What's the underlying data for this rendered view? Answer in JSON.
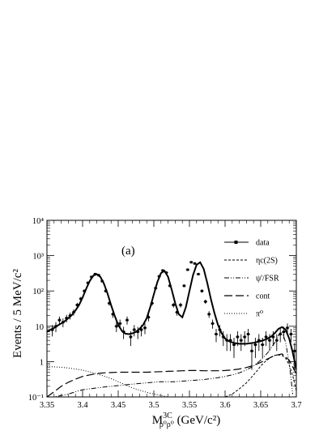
{
  "chart_data": {
    "type": "line",
    "panel_label": "(a)",
    "xlabel": {
      "main": "M",
      "sup": "3C",
      "sub": "ρ⁰ρ⁰",
      "unit": " (GeV/c²)"
    },
    "ylabel": "Events / 5 MeV/c²",
    "xlim": [
      3.35,
      3.7
    ],
    "ylim": [
      0.1,
      10000
    ],
    "yscale": "log",
    "x_ticks": [
      "3.35",
      "3.4",
      "3.45",
      "3.5",
      "3.55",
      "3.6",
      "3.65",
      "3.7"
    ],
    "y_ticks": [
      "10⁻¹",
      "1",
      "10",
      "10²",
      "10³",
      "10⁴"
    ],
    "legend_position": "top-right",
    "legend": [
      {
        "label": "data",
        "style": "data"
      },
      {
        "label": "ηc(2S)",
        "style": "dashed"
      },
      {
        "label": "ψ'/FSR",
        "style": "dashdot"
      },
      {
        "label": "cont",
        "style": "longdash"
      },
      {
        "label": "π⁰",
        "style": "dotted"
      }
    ],
    "data_points": {
      "name": "data",
      "x": [
        3.3575,
        3.3625,
        3.3675,
        3.3725,
        3.3775,
        3.3825,
        3.3875,
        3.3925,
        3.3975,
        3.4025,
        3.4075,
        3.4125,
        3.4175,
        3.4225,
        3.4275,
        3.4325,
        3.4375,
        3.4425,
        3.4475,
        3.4525,
        3.4575,
        3.4625,
        3.4675,
        3.4725,
        3.4775,
        3.4825,
        3.4875,
        3.4925,
        3.4975,
        3.5025,
        3.5075,
        3.5125,
        3.5175,
        3.5225,
        3.5275,
        3.5325,
        3.5375,
        3.5425,
        3.5475,
        3.5525,
        3.5575,
        3.5625,
        3.5675,
        3.5725,
        3.5775,
        3.5825,
        3.5875,
        3.5925,
        3.5975,
        3.6025,
        3.6075,
        3.6125,
        3.6175,
        3.6225,
        3.6275,
        3.6325,
        3.6375,
        3.6425,
        3.6475,
        3.6525,
        3.6575,
        3.6625,
        3.6675,
        3.6725,
        3.6775,
        3.6825,
        3.6875,
        3.6925,
        3.6975
      ],
      "y": [
        8,
        10,
        15,
        13,
        17,
        20,
        25,
        40,
        60,
        100,
        170,
        250,
        300,
        280,
        190,
        100,
        45,
        22,
        10,
        12,
        7,
        15,
        5,
        8,
        7,
        8,
        9,
        18,
        45,
        120,
        260,
        380,
        330,
        140,
        40,
        25,
        40,
        140,
        400,
        650,
        600,
        300,
        100,
        50,
        22,
        12,
        6,
        8,
        5,
        4,
        4,
        3,
        5,
        4,
        5,
        6,
        2,
        3,
        4,
        3,
        5,
        4,
        5,
        4,
        6,
        7,
        9,
        6,
        2
      ]
    },
    "curves": {
      "fit_x": [
        3.35,
        3.355,
        3.36,
        3.365,
        3.37,
        3.375,
        3.38,
        3.385,
        3.39,
        3.395,
        3.4,
        3.405,
        3.41,
        3.415,
        3.42,
        3.425,
        3.43,
        3.435,
        3.44,
        3.445,
        3.45,
        3.455,
        3.46,
        3.465,
        3.47,
        3.475,
        3.48,
        3.485,
        3.49,
        3.495,
        3.5,
        3.505,
        3.51,
        3.515,
        3.52,
        3.525,
        3.53,
        3.535,
        3.54,
        3.545,
        3.55,
        3.555,
        3.56,
        3.565,
        3.57,
        3.575,
        3.58,
        3.585,
        3.59,
        3.595,
        3.6,
        3.605,
        3.61,
        3.615,
        3.62,
        3.625,
        3.63,
        3.635,
        3.64,
        3.645,
        3.65,
        3.655,
        3.66,
        3.665,
        3.67,
        3.675,
        3.68,
        3.685,
        3.69,
        3.695,
        3.7
      ],
      "fit_y": [
        7,
        8,
        9,
        10.5,
        12,
        14,
        17,
        21,
        28,
        40,
        65,
        115,
        190,
        270,
        300,
        250,
        160,
        85,
        40,
        20,
        11,
        7.5,
        6.2,
        6,
        6.3,
        7,
        8.5,
        11,
        17,
        35,
        80,
        180,
        320,
        370,
        250,
        110,
        45,
        22,
        18,
        35,
        100,
        280,
        550,
        650,
        420,
        170,
        60,
        24,
        11,
        6.5,
        4.5,
        3.8,
        3.5,
        3.3,
        3.2,
        3.2,
        3.2,
        3.3,
        3.4,
        3.6,
        3.8,
        4.1,
        4.5,
        5.2,
        6.5,
        8.5,
        9.5,
        8,
        4.5,
        1.8,
        0.6
      ],
      "pi0_x": [
        3.35,
        3.36,
        3.37,
        3.38,
        3.39,
        3.4,
        3.41,
        3.42,
        3.43,
        3.44,
        3.45,
        3.46,
        3.47,
        3.48,
        3.49,
        3.5,
        3.51,
        3.52
      ],
      "pi0_y": [
        0.72,
        0.71,
        0.69,
        0.66,
        0.62,
        0.57,
        0.51,
        0.45,
        0.39,
        0.33,
        0.27,
        0.22,
        0.18,
        0.155,
        0.135,
        0.12,
        0.11,
        0.1
      ],
      "cont_x": [
        3.35,
        3.36,
        3.37,
        3.38,
        3.39,
        3.4,
        3.41,
        3.42,
        3.43,
        3.44,
        3.45,
        3.46,
        3.47,
        3.48,
        3.49,
        3.5,
        3.51,
        3.52,
        3.53,
        3.54,
        3.55,
        3.56,
        3.57,
        3.58,
        3.59,
        3.6,
        3.61,
        3.62,
        3.63,
        3.64,
        3.65,
        3.66,
        3.67,
        3.68,
        3.69,
        3.7
      ],
      "cont_y": [
        0.1,
        0.14,
        0.2,
        0.26,
        0.32,
        0.38,
        0.42,
        0.46,
        0.48,
        0.49,
        0.5,
        0.5,
        0.5,
        0.5,
        0.5,
        0.51,
        0.52,
        0.53,
        0.54,
        0.55,
        0.56,
        0.56,
        0.55,
        0.55,
        0.55,
        0.56,
        0.58,
        0.62,
        0.68,
        0.78,
        0.95,
        1.2,
        1.5,
        1.65,
        1.1,
        0.45
      ],
      "psi_x": [
        3.35,
        3.36,
        3.37,
        3.38,
        3.39,
        3.4,
        3.41,
        3.42,
        3.43,
        3.44,
        3.45,
        3.46,
        3.47,
        3.48,
        3.49,
        3.5,
        3.51,
        3.52,
        3.53,
        3.54,
        3.55,
        3.56,
        3.57,
        3.58,
        3.59,
        3.6,
        3.61,
        3.62,
        3.63,
        3.64,
        3.65,
        3.66,
        3.67,
        3.675,
        3.68,
        3.685,
        3.69,
        3.695
      ],
      "psi_y": [
        0.1,
        0.1,
        0.11,
        0.12,
        0.14,
        0.16,
        0.17,
        0.18,
        0.19,
        0.2,
        0.21,
        0.22,
        0.23,
        0.24,
        0.25,
        0.26,
        0.27,
        0.27,
        0.27,
        0.28,
        0.29,
        0.3,
        0.31,
        0.33,
        0.35,
        0.38,
        0.42,
        0.48,
        0.58,
        0.75,
        1.1,
        1.8,
        3.5,
        5.5,
        7,
        3.5,
        0.9,
        0.12
      ],
      "etac_x": [
        3.6,
        3.61,
        3.62,
        3.63,
        3.64,
        3.645,
        3.65,
        3.655,
        3.66,
        3.665,
        3.67,
        3.675,
        3.68,
        3.685,
        3.69,
        3.695,
        3.7
      ],
      "etac_y": [
        0.1,
        0.12,
        0.17,
        0.25,
        0.42,
        0.55,
        0.75,
        0.95,
        1.15,
        1.35,
        1.5,
        1.55,
        1.5,
        1.25,
        0.8,
        0.4,
        0.15
      ]
    }
  }
}
